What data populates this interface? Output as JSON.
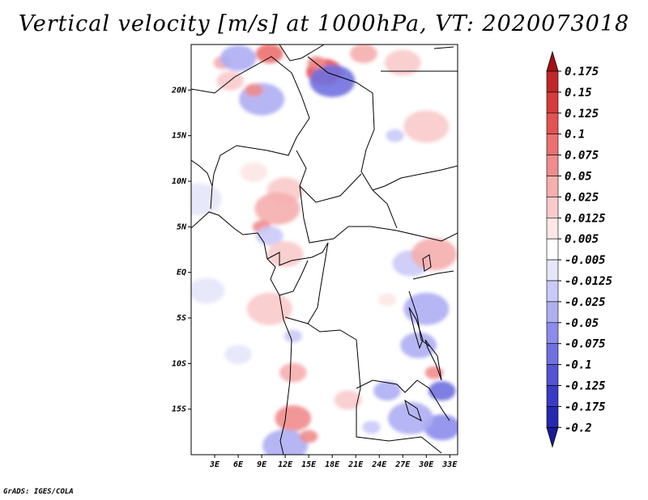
{
  "title": "Vertical velocity [m/s] at 1000hPa, VT: 2020073018",
  "footer": "GrADS: IGES/COLA",
  "chart_data": {
    "type": "heatmap",
    "variable": "Vertical velocity",
    "units": "m/s",
    "level": "1000hPa",
    "valid_time": "2020073018",
    "lon_range": [
      0,
      34
    ],
    "lat_range": [
      -20,
      25
    ],
    "x_ticks": [
      "3E",
      "6E",
      "9E",
      "12E",
      "15E",
      "18E",
      "21E",
      "24E",
      "27E",
      "30E",
      "33E"
    ],
    "x_tick_values": [
      3,
      6,
      9,
      12,
      15,
      18,
      21,
      24,
      27,
      30,
      33
    ],
    "y_ticks": [
      "20N",
      "15N",
      "10N",
      "5N",
      "EQ",
      "5S",
      "10S",
      "15S"
    ],
    "y_tick_values": [
      20,
      15,
      10,
      5,
      0,
      -5,
      -10,
      -15
    ],
    "colorbar_labels": [
      "0.175",
      "0.15",
      "0.125",
      "0.1",
      "0.075",
      "0.05",
      "0.025",
      "0.0125",
      "0.005",
      "-0.005",
      "-0.0125",
      "-0.025",
      "-0.05",
      "-0.075",
      "-0.1",
      "-0.125",
      "-0.175",
      "-0.2"
    ],
    "colorbar_colors": [
      "#a50f15",
      "#c1272d",
      "#d73a3a",
      "#e45353",
      "#ec7070",
      "#f08c8c",
      "#f6aeae",
      "#facaca",
      "#fde6e6",
      "#ffffff",
      "#e6e6fb",
      "#cacaf8",
      "#aeaef3",
      "#8c8cec",
      "#7070e0",
      "#5353d4",
      "#3a3ac4",
      "#2727b0",
      "#1a1a96"
    ],
    "colorbar_arrow_top_color": "#a50f15",
    "colorbar_arrow_bottom_color": "#1a1a96",
    "patches": [
      {
        "lon": 4,
        "lat": 23,
        "v": 0.03
      },
      {
        "lon": 5,
        "lat": 21,
        "v": 0.02
      },
      {
        "lon": 6,
        "lat": 23.5,
        "v": -0.05
      },
      {
        "lon": 9,
        "lat": 19,
        "v": -0.03
      },
      {
        "lon": 8,
        "lat": 20,
        "v": 0.05
      },
      {
        "lon": 10,
        "lat": 24,
        "v": 0.08
      },
      {
        "lon": 17,
        "lat": 22,
        "v": 0.12
      },
      {
        "lon": 18,
        "lat": 21,
        "v": -0.1
      },
      {
        "lon": 16,
        "lat": 23,
        "v": 0.05
      },
      {
        "lon": 22,
        "lat": 24,
        "v": 0.03
      },
      {
        "lon": 27,
        "lat": 23,
        "v": 0.02
      },
      {
        "lon": 30,
        "lat": 16,
        "v": 0.02
      },
      {
        "lon": 26,
        "lat": 15,
        "v": -0.02
      },
      {
        "lon": 8,
        "lat": 11,
        "v": 0.01
      },
      {
        "lon": 12,
        "lat": 9,
        "v": 0.02
      },
      {
        "lon": 11,
        "lat": 7,
        "v": 0.03
      },
      {
        "lon": 9,
        "lat": 5,
        "v": 0.05
      },
      {
        "lon": 10,
        "lat": 4,
        "v": -0.02
      },
      {
        "lon": 12,
        "lat": 2,
        "v": 0.02
      },
      {
        "lon": 10,
        "lat": -4,
        "v": 0.02
      },
      {
        "lon": 13,
        "lat": -7,
        "v": -0.02
      },
      {
        "lon": 13,
        "lat": -11,
        "v": 0.04
      },
      {
        "lon": 13,
        "lat": -16,
        "v": 0.06
      },
      {
        "lon": 12,
        "lat": -19,
        "v": -0.03
      },
      {
        "lon": 15,
        "lat": -18,
        "v": 0.05
      },
      {
        "lon": 25,
        "lat": -13,
        "v": -0.03
      },
      {
        "lon": 29,
        "lat": -8,
        "v": -0.05
      },
      {
        "lon": 30,
        "lat": -4,
        "v": -0.04
      },
      {
        "lon": 31,
        "lat": -11,
        "v": 0.05
      },
      {
        "lon": 32,
        "lat": -13,
        "v": -0.08
      },
      {
        "lon": 32,
        "lat": -17,
        "v": -0.06
      },
      {
        "lon": 28,
        "lat": -16,
        "v": -0.04
      },
      {
        "lon": 23,
        "lat": -17,
        "v": -0.02
      },
      {
        "lon": 20,
        "lat": -14,
        "v": 0.02
      },
      {
        "lon": 28,
        "lat": 1,
        "v": -0.02
      },
      {
        "lon": 31,
        "lat": 2,
        "v": 0.03
      },
      {
        "lon": 25,
        "lat": -3,
        "v": 0.01
      },
      {
        "lon": 6,
        "lat": -9,
        "v": -0.01
      },
      {
        "lon": 2,
        "lat": -2,
        "v": -0.01
      },
      {
        "lon": 1,
        "lat": 8,
        "v": -0.01
      }
    ]
  }
}
